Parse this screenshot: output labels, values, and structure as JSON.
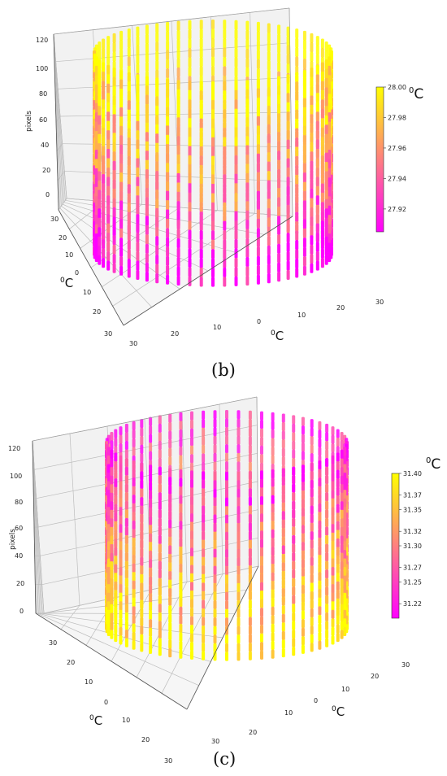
{
  "chart_data": [
    {
      "panel": "(b)",
      "type": "scatter3d",
      "description_of_marks": "vertical columns of points arranged on a cylinder, colored by temperature",
      "axes": {
        "z_label": "pixels",
        "z_ticks": [
          "0",
          "20",
          "40",
          "60",
          "80",
          "100",
          "120"
        ],
        "x_label": "0C",
        "x_ticks": [
          "30",
          "20",
          "10",
          "0",
          "10",
          "20",
          "30"
        ],
        "y_label": "0C",
        "y_ticks": [
          "30",
          "20",
          "10",
          "0",
          "10",
          "20",
          "30"
        ]
      },
      "colorbar": {
        "label": "0C",
        "min": 27.905,
        "max": 28.0,
        "ticks": [
          "28.00",
          "27.98",
          "27.96",
          "27.94",
          "27.92"
        ],
        "colormap": [
          "#ff00ff",
          "#ffff00"
        ]
      },
      "columns": 64,
      "radius": 25,
      "height": 110,
      "temperature_pattern": "top warmer (yellow), bottom cooler (magenta)"
    },
    {
      "panel": "(c)",
      "type": "scatter3d",
      "description_of_marks": "vertical columns of points arranged on a cylinder, colored by temperature",
      "axes": {
        "z_label": "pixels",
        "z_ticks": [
          "0",
          "20",
          "40",
          "60",
          "80",
          "100",
          "120"
        ],
        "x_label": "0C",
        "x_ticks": [
          "30",
          "20",
          "10",
          "0",
          "10",
          "20",
          "30"
        ],
        "y_label": "0C",
        "y_ticks": [
          "30",
          "20",
          "10",
          "0",
          "10",
          "20",
          "30"
        ]
      },
      "colorbar": {
        "label": "0C",
        "min": 31.2,
        "max": 31.4,
        "ticks": [
          "31.40",
          "31.37",
          "31.35",
          "31.32",
          "31.30",
          "31.27",
          "31.25",
          "31.22"
        ],
        "colormap": [
          "#ff00ff",
          "#ffff00"
        ]
      },
      "columns": 64,
      "radius": 25,
      "height": 110,
      "temperature_pattern": "top cooler (magenta), bottom warmer (yellow)"
    }
  ],
  "captions": {
    "b": "(b)",
    "c": "(c)"
  }
}
